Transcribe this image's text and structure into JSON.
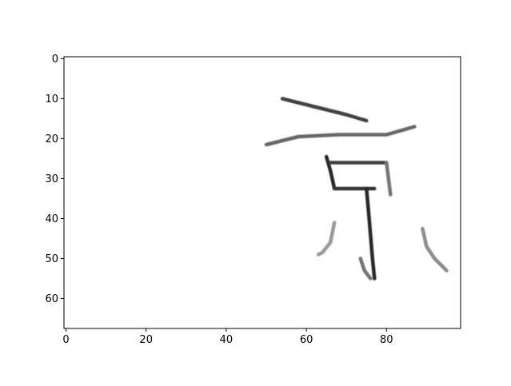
{
  "chart_data": {
    "type": "heatmap",
    "colormap": "gray_r",
    "image_shape": [
      68,
      99
    ],
    "x_ticks": [
      0,
      20,
      40,
      60,
      80
    ],
    "y_ticks": [
      0,
      10,
      20,
      30,
      40,
      50,
      60
    ],
    "xlim": [
      -0.5,
      98.5
    ],
    "ylim": [
      67.5,
      -0.5
    ],
    "x_tick_labels": [
      "0",
      "20",
      "40",
      "60",
      "80"
    ],
    "y_tick_labels": [
      "0",
      "10",
      "20",
      "30",
      "40",
      "50",
      "60"
    ],
    "strokes": [
      {
        "points": [
          [
            54,
            10
          ],
          [
            62,
            12
          ],
          [
            70,
            14
          ],
          [
            75,
            15.5
          ]
        ],
        "intensity": 0.75
      },
      {
        "points": [
          [
            50,
            21.5
          ],
          [
            58,
            19.5
          ],
          [
            68,
            19
          ],
          [
            80,
            19
          ],
          [
            87,
            17
          ]
        ],
        "intensity": 0.6
      },
      {
        "points": [
          [
            65,
            24.5
          ],
          [
            66,
            28
          ],
          [
            67,
            32.5
          ]
        ],
        "intensity": 0.85
      },
      {
        "points": [
          [
            66,
            26
          ],
          [
            74,
            26
          ],
          [
            80,
            26
          ]
        ],
        "intensity": 0.75
      },
      {
        "points": [
          [
            80,
            26
          ],
          [
            80.5,
            30
          ],
          [
            81,
            34
          ]
        ],
        "intensity": 0.55
      },
      {
        "points": [
          [
            67,
            32.5
          ],
          [
            72,
            32.5
          ],
          [
            77,
            32.5
          ]
        ],
        "intensity": 0.8
      },
      {
        "points": [
          [
            75,
            32.5
          ],
          [
            75.5,
            38
          ],
          [
            76,
            44
          ],
          [
            76.5,
            50
          ],
          [
            77,
            55
          ]
        ],
        "intensity": 0.85
      },
      {
        "points": [
          [
            73.5,
            50
          ],
          [
            74.5,
            53
          ],
          [
            76,
            55
          ]
        ],
        "intensity": 0.55
      },
      {
        "points": [
          [
            67,
            41
          ],
          [
            66,
            46
          ],
          [
            64,
            48.5
          ],
          [
            63,
            49
          ]
        ],
        "intensity": 0.4
      },
      {
        "points": [
          [
            89,
            42.5
          ],
          [
            90,
            47
          ],
          [
            92,
            50
          ],
          [
            95,
            53
          ]
        ],
        "intensity": 0.45
      }
    ]
  }
}
